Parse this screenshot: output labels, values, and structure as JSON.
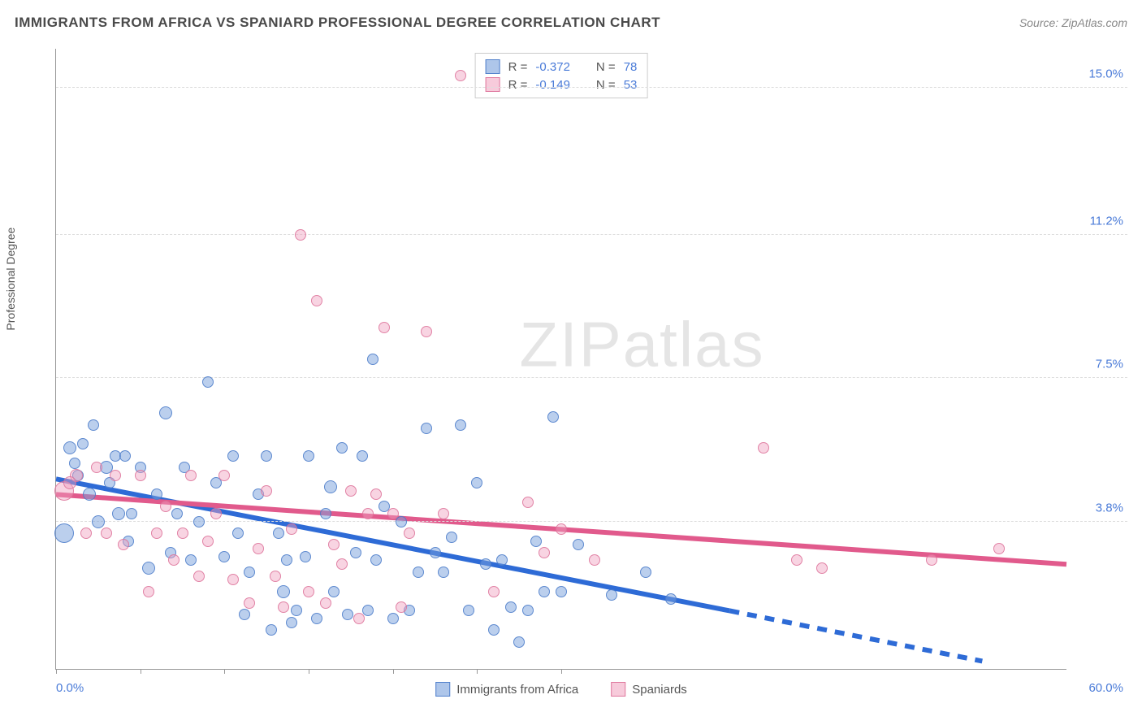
{
  "header": {
    "title": "IMMIGRANTS FROM AFRICA VS SPANIARD PROFESSIONAL DEGREE CORRELATION CHART",
    "source_prefix": "Source: ",
    "source_name": "ZipAtlas.com"
  },
  "chart": {
    "type": "scatter",
    "y_axis_label": "Professional Degree",
    "xlim": [
      0,
      60
    ],
    "ylim": [
      0,
      16
    ],
    "x_label_min": "0.0%",
    "x_label_max": "60.0%",
    "y_gridlines": [
      {
        "value": 3.8,
        "label": "3.8%"
      },
      {
        "value": 7.5,
        "label": "7.5%"
      },
      {
        "value": 11.2,
        "label": "11.2%"
      },
      {
        "value": 15.0,
        "label": "15.0%"
      }
    ],
    "x_ticks": [
      0,
      5,
      10,
      15,
      20,
      25,
      30
    ],
    "background_color": "#ffffff",
    "grid_color": "#dddddd",
    "axis_color": "#999999",
    "label_color": "#4a7bd8",
    "watermark": "ZIPatlas",
    "series": [
      {
        "id": "africa",
        "label": "Immigrants from Africa",
        "color_fill": "rgba(120,160,220,0.5)",
        "color_stroke": "rgba(70,120,200,0.8)",
        "R": "-0.372",
        "N": "78",
        "trend": {
          "x1": 0,
          "y1": 4.9,
          "x2": 40,
          "y2": 1.5,
          "dash_x2": 55,
          "dash_y2": 0.2,
          "color": "#2e6bd6",
          "width": 2
        },
        "points": [
          {
            "x": 0.5,
            "y": 3.5,
            "r": 12
          },
          {
            "x": 0.8,
            "y": 5.7,
            "r": 8
          },
          {
            "x": 1.1,
            "y": 5.3,
            "r": 7
          },
          {
            "x": 1.3,
            "y": 5.0,
            "r": 7
          },
          {
            "x": 1.6,
            "y": 5.8,
            "r": 7
          },
          {
            "x": 2.0,
            "y": 4.5,
            "r": 8
          },
          {
            "x": 2.2,
            "y": 6.3,
            "r": 7
          },
          {
            "x": 2.5,
            "y": 3.8,
            "r": 8
          },
          {
            "x": 3.0,
            "y": 5.2,
            "r": 8
          },
          {
            "x": 3.2,
            "y": 4.8,
            "r": 7
          },
          {
            "x": 3.5,
            "y": 5.5,
            "r": 7
          },
          {
            "x": 3.7,
            "y": 4.0,
            "r": 8
          },
          {
            "x": 4.1,
            "y": 5.5,
            "r": 7
          },
          {
            "x": 4.3,
            "y": 3.3,
            "r": 7
          },
          {
            "x": 4.5,
            "y": 4.0,
            "r": 7
          },
          {
            "x": 5.0,
            "y": 5.2,
            "r": 7
          },
          {
            "x": 5.5,
            "y": 2.6,
            "r": 8
          },
          {
            "x": 6.0,
            "y": 4.5,
            "r": 7
          },
          {
            "x": 6.5,
            "y": 6.6,
            "r": 8
          },
          {
            "x": 6.8,
            "y": 3.0,
            "r": 7
          },
          {
            "x": 7.2,
            "y": 4.0,
            "r": 7
          },
          {
            "x": 7.6,
            "y": 5.2,
            "r": 7
          },
          {
            "x": 8.0,
            "y": 2.8,
            "r": 7
          },
          {
            "x": 8.5,
            "y": 3.8,
            "r": 7
          },
          {
            "x": 9.0,
            "y": 7.4,
            "r": 7
          },
          {
            "x": 9.5,
            "y": 4.8,
            "r": 7
          },
          {
            "x": 10.0,
            "y": 2.9,
            "r": 7
          },
          {
            "x": 10.5,
            "y": 5.5,
            "r": 7
          },
          {
            "x": 10.8,
            "y": 3.5,
            "r": 7
          },
          {
            "x": 11.2,
            "y": 1.4,
            "r": 7
          },
          {
            "x": 11.5,
            "y": 2.5,
            "r": 7
          },
          {
            "x": 12.0,
            "y": 4.5,
            "r": 7
          },
          {
            "x": 12.5,
            "y": 5.5,
            "r": 7
          },
          {
            "x": 12.8,
            "y": 1.0,
            "r": 7
          },
          {
            "x": 13.2,
            "y": 3.5,
            "r": 7
          },
          {
            "x": 13.5,
            "y": 2.0,
            "r": 8
          },
          {
            "x": 13.7,
            "y": 2.8,
            "r": 7
          },
          {
            "x": 14.0,
            "y": 1.2,
            "r": 7
          },
          {
            "x": 14.3,
            "y": 1.5,
            "r": 7
          },
          {
            "x": 14.8,
            "y": 2.9,
            "r": 7
          },
          {
            "x": 15.0,
            "y": 5.5,
            "r": 7
          },
          {
            "x": 15.5,
            "y": 1.3,
            "r": 7
          },
          {
            "x": 16.0,
            "y": 4.0,
            "r": 7
          },
          {
            "x": 16.3,
            "y": 4.7,
            "r": 8
          },
          {
            "x": 16.5,
            "y": 2.0,
            "r": 7
          },
          {
            "x": 17.0,
            "y": 5.7,
            "r": 7
          },
          {
            "x": 17.3,
            "y": 1.4,
            "r": 7
          },
          {
            "x": 17.8,
            "y": 3.0,
            "r": 7
          },
          {
            "x": 18.2,
            "y": 5.5,
            "r": 7
          },
          {
            "x": 18.5,
            "y": 1.5,
            "r": 7
          },
          {
            "x": 18.8,
            "y": 8.0,
            "r": 7
          },
          {
            "x": 19.0,
            "y": 2.8,
            "r": 7
          },
          {
            "x": 19.5,
            "y": 4.2,
            "r": 7
          },
          {
            "x": 20.0,
            "y": 1.3,
            "r": 7
          },
          {
            "x": 20.5,
            "y": 3.8,
            "r": 7
          },
          {
            "x": 21.0,
            "y": 1.5,
            "r": 7
          },
          {
            "x": 21.5,
            "y": 2.5,
            "r": 7
          },
          {
            "x": 22.0,
            "y": 6.2,
            "r": 7
          },
          {
            "x": 22.5,
            "y": 3.0,
            "r": 7
          },
          {
            "x": 23.0,
            "y": 2.5,
            "r": 7
          },
          {
            "x": 23.5,
            "y": 3.4,
            "r": 7
          },
          {
            "x": 24.0,
            "y": 6.3,
            "r": 7
          },
          {
            "x": 24.5,
            "y": 1.5,
            "r": 7
          },
          {
            "x": 25.0,
            "y": 4.8,
            "r": 7
          },
          {
            "x": 25.5,
            "y": 2.7,
            "r": 7
          },
          {
            "x": 26.0,
            "y": 1.0,
            "r": 7
          },
          {
            "x": 26.5,
            "y": 2.8,
            "r": 7
          },
          {
            "x": 27.0,
            "y": 1.6,
            "r": 7
          },
          {
            "x": 27.5,
            "y": 0.7,
            "r": 7
          },
          {
            "x": 28.0,
            "y": 1.5,
            "r": 7
          },
          {
            "x": 28.5,
            "y": 3.3,
            "r": 7
          },
          {
            "x": 29.0,
            "y": 2.0,
            "r": 7
          },
          {
            "x": 29.5,
            "y": 6.5,
            "r": 7
          },
          {
            "x": 30.0,
            "y": 2.0,
            "r": 7
          },
          {
            "x": 31.0,
            "y": 3.2,
            "r": 7
          },
          {
            "x": 33.0,
            "y": 1.9,
            "r": 7
          },
          {
            "x": 35.0,
            "y": 2.5,
            "r": 7
          },
          {
            "x": 36.5,
            "y": 1.8,
            "r": 7
          }
        ]
      },
      {
        "id": "spaniards",
        "label": "Spaniards",
        "color_fill": "rgba(240,160,190,0.45)",
        "color_stroke": "rgba(220,110,150,0.8)",
        "R": "-0.149",
        "N": "53",
        "trend": {
          "x1": 0,
          "y1": 4.5,
          "x2": 60,
          "y2": 2.7,
          "color": "#e15a8c",
          "width": 2
        },
        "points": [
          {
            "x": 0.5,
            "y": 4.6,
            "r": 12
          },
          {
            "x": 1.2,
            "y": 5.0,
            "r": 8
          },
          {
            "x": 1.8,
            "y": 3.5,
            "r": 7
          },
          {
            "x": 2.4,
            "y": 5.2,
            "r": 7
          },
          {
            "x": 3.0,
            "y": 3.5,
            "r": 7
          },
          {
            "x": 3.5,
            "y": 5.0,
            "r": 7
          },
          {
            "x": 4.0,
            "y": 3.2,
            "r": 7
          },
          {
            "x": 5.0,
            "y": 5.0,
            "r": 7
          },
          {
            "x": 5.5,
            "y": 2.0,
            "r": 7
          },
          {
            "x": 6.0,
            "y": 3.5,
            "r": 7
          },
          {
            "x": 6.5,
            "y": 4.2,
            "r": 7
          },
          {
            "x": 7.0,
            "y": 2.8,
            "r": 7
          },
          {
            "x": 7.5,
            "y": 3.5,
            "r": 7
          },
          {
            "x": 8.0,
            "y": 5.0,
            "r": 7
          },
          {
            "x": 8.5,
            "y": 2.4,
            "r": 7
          },
          {
            "x": 9.0,
            "y": 3.3,
            "r": 7
          },
          {
            "x": 9.5,
            "y": 4.0,
            "r": 7
          },
          {
            "x": 10.0,
            "y": 5.0,
            "r": 7
          },
          {
            "x": 10.5,
            "y": 2.3,
            "r": 7
          },
          {
            "x": 11.5,
            "y": 1.7,
            "r": 7
          },
          {
            "x": 12.0,
            "y": 3.1,
            "r": 7
          },
          {
            "x": 12.5,
            "y": 4.6,
            "r": 7
          },
          {
            "x": 13.0,
            "y": 2.4,
            "r": 7
          },
          {
            "x": 13.5,
            "y": 1.6,
            "r": 7
          },
          {
            "x": 14.0,
            "y": 3.6,
            "r": 7
          },
          {
            "x": 14.5,
            "y": 11.2,
            "r": 7
          },
          {
            "x": 15.0,
            "y": 2.0,
            "r": 7
          },
          {
            "x": 15.5,
            "y": 9.5,
            "r": 7
          },
          {
            "x": 16.0,
            "y": 1.7,
            "r": 7
          },
          {
            "x": 16.5,
            "y": 3.2,
            "r": 7
          },
          {
            "x": 17.0,
            "y": 2.7,
            "r": 7
          },
          {
            "x": 17.5,
            "y": 4.6,
            "r": 7
          },
          {
            "x": 18.0,
            "y": 1.3,
            "r": 7
          },
          {
            "x": 18.5,
            "y": 4.0,
            "r": 7
          },
          {
            "x": 19.0,
            "y": 4.5,
            "r": 7
          },
          {
            "x": 19.5,
            "y": 8.8,
            "r": 7
          },
          {
            "x": 20.0,
            "y": 4.0,
            "r": 7
          },
          {
            "x": 20.5,
            "y": 1.6,
            "r": 7
          },
          {
            "x": 21.0,
            "y": 3.5,
            "r": 7
          },
          {
            "x": 22.0,
            "y": 8.7,
            "r": 7
          },
          {
            "x": 23.0,
            "y": 4.0,
            "r": 7
          },
          {
            "x": 24.0,
            "y": 15.3,
            "r": 7
          },
          {
            "x": 26.0,
            "y": 2.0,
            "r": 7
          },
          {
            "x": 28.0,
            "y": 4.3,
            "r": 7
          },
          {
            "x": 29.0,
            "y": 3.0,
            "r": 7
          },
          {
            "x": 30.0,
            "y": 3.6,
            "r": 7
          },
          {
            "x": 32.0,
            "y": 2.8,
            "r": 7
          },
          {
            "x": 42.0,
            "y": 5.7,
            "r": 7
          },
          {
            "x": 44.0,
            "y": 2.8,
            "r": 7
          },
          {
            "x": 45.5,
            "y": 2.6,
            "r": 7
          },
          {
            "x": 52.0,
            "y": 2.8,
            "r": 7
          },
          {
            "x": 56.0,
            "y": 3.1,
            "r": 7
          },
          {
            "x": 0.8,
            "y": 4.8,
            "r": 8
          }
        ]
      }
    ]
  }
}
